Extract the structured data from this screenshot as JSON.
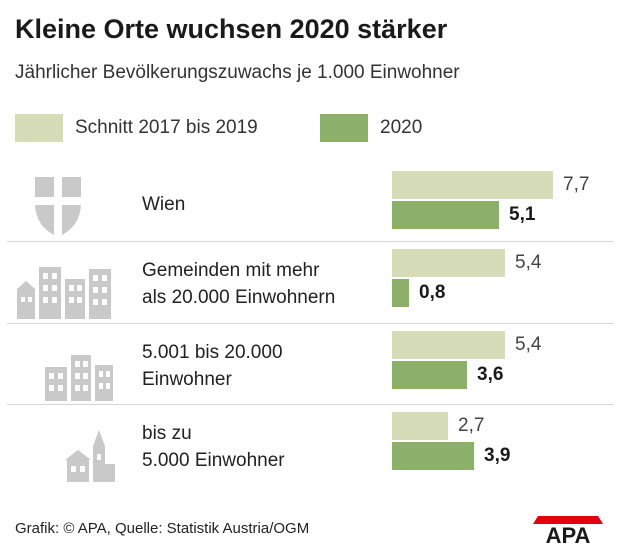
{
  "title": "Kleine Orte wuchsen 2020 stärker",
  "subtitle": "Jährlicher Bevölkerungszuwachs je 1.000 Einwohner",
  "colors": {
    "avg": "#d7dcb8",
    "y2020": "#8caf6a",
    "icon": "#c9c9c9",
    "separator": "#d6d6d6"
  },
  "footer": "Grafik: © APA, Quelle: Statistik Austria/OGM",
  "logo_text": "APA",
  "chart_data": {
    "type": "bar",
    "orientation": "horizontal",
    "categories": [
      "Wien",
      "Gemeinden mit mehr als 20.000 Einwohnern",
      "5.001 bis 20.000 Einwohner",
      "bis zu 5.000 Einwohner"
    ],
    "category_lines": [
      [
        "Wien"
      ],
      [
        "Gemeinden mit mehr",
        "als 20.000 Einwohnern"
      ],
      [
        "5.001 bis 20.000",
        "Einwohner"
      ],
      [
        "bis zu",
        "5.000 Einwohner"
      ]
    ],
    "category_icons": [
      "vienna-coat-of-arms-icon",
      "city-buildings-icon",
      "town-buildings-icon",
      "village-church-icon"
    ],
    "series": [
      {
        "name": "Schnitt 2017 bis 2019",
        "values": [
          7.7,
          5.4,
          5.4,
          2.7
        ],
        "labels": [
          "7,7",
          "5,4",
          "5,4",
          "2,7"
        ]
      },
      {
        "name": "2020",
        "values": [
          5.1,
          0.8,
          3.6,
          3.9
        ],
        "labels": [
          "5,1",
          "0,8",
          "3,6",
          "3,9"
        ]
      }
    ],
    "title": "Kleine Orte wuchsen 2020 stärker",
    "subtitle": "Jährlicher Bevölkerungszuwachs je 1.000 Einwohner",
    "xlim": [
      0,
      7.7
    ],
    "grid": false,
    "legend_position": "top-left"
  }
}
